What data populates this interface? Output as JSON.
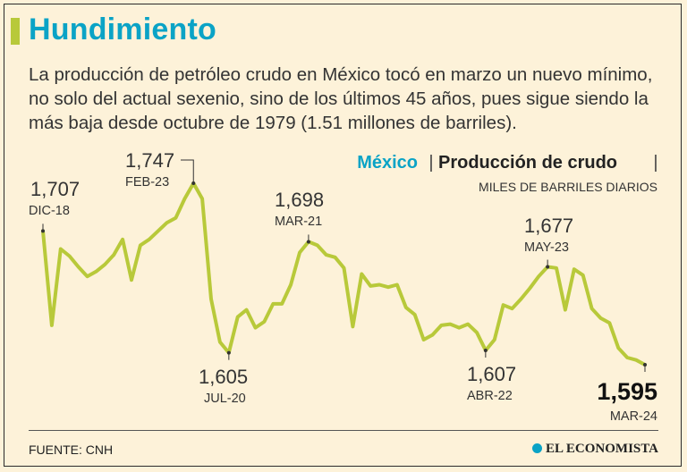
{
  "header": {
    "title": "Hundimiento",
    "subtitle": "La producción de petróleo crudo en México tocó en marzo un nuevo mínimo, no solo del actual sexenio, sino de los últimos 45 años, pues sigue siendo la más baja desde octubre de 1979 (1.51 millones de barriles)."
  },
  "chart_header": {
    "country": "México",
    "separator": "|",
    "series_title": "Producción de crudo",
    "unit": "MILES DE BARRILES DIARIOS"
  },
  "chart_data": {
    "type": "line",
    "series": [
      {
        "color": "#b8c93a",
        "values": [
          1707,
          1628,
          1692,
          1686,
          1677,
          1669,
          1673,
          1679,
          1687,
          1700,
          1666,
          1695,
          1700,
          1707,
          1714,
          1718,
          1734,
          1747,
          1734,
          1650,
          1614,
          1605,
          1635,
          1641,
          1626,
          1631,
          1646,
          1646,
          1662,
          1689,
          1698,
          1695,
          1687,
          1685,
          1676,
          1627,
          1671,
          1661,
          1662,
          1660,
          1662,
          1643,
          1637,
          1616,
          1620,
          1628,
          1629,
          1626,
          1629,
          1622,
          1607,
          1616,
          1645,
          1642,
          1650,
          1659,
          1669,
          1677,
          1676,
          1641,
          1675,
          1670,
          1642,
          1634,
          1630,
          1609,
          1601,
          1599,
          1595
        ]
      }
    ],
    "annotations": [
      {
        "index": 0,
        "value": "1,707",
        "date": "DIC-18"
      },
      {
        "index": 17,
        "value": "1,747",
        "date": "FEB-23"
      },
      {
        "index": 21,
        "value": "1,605",
        "date": "JUL-20"
      },
      {
        "index": 30,
        "value": "1,698",
        "date": "MAR-21"
      },
      {
        "index": 50,
        "value": "1,607",
        "date": "ABR-22"
      },
      {
        "index": 57,
        "value": "1,677",
        "date": "MAY-23"
      },
      {
        "index": 68,
        "value": "1,595",
        "date": "MAR-24"
      }
    ]
  },
  "footer": {
    "source": "FUENTE: CNH",
    "brand": "EL ECONOMISTA"
  }
}
